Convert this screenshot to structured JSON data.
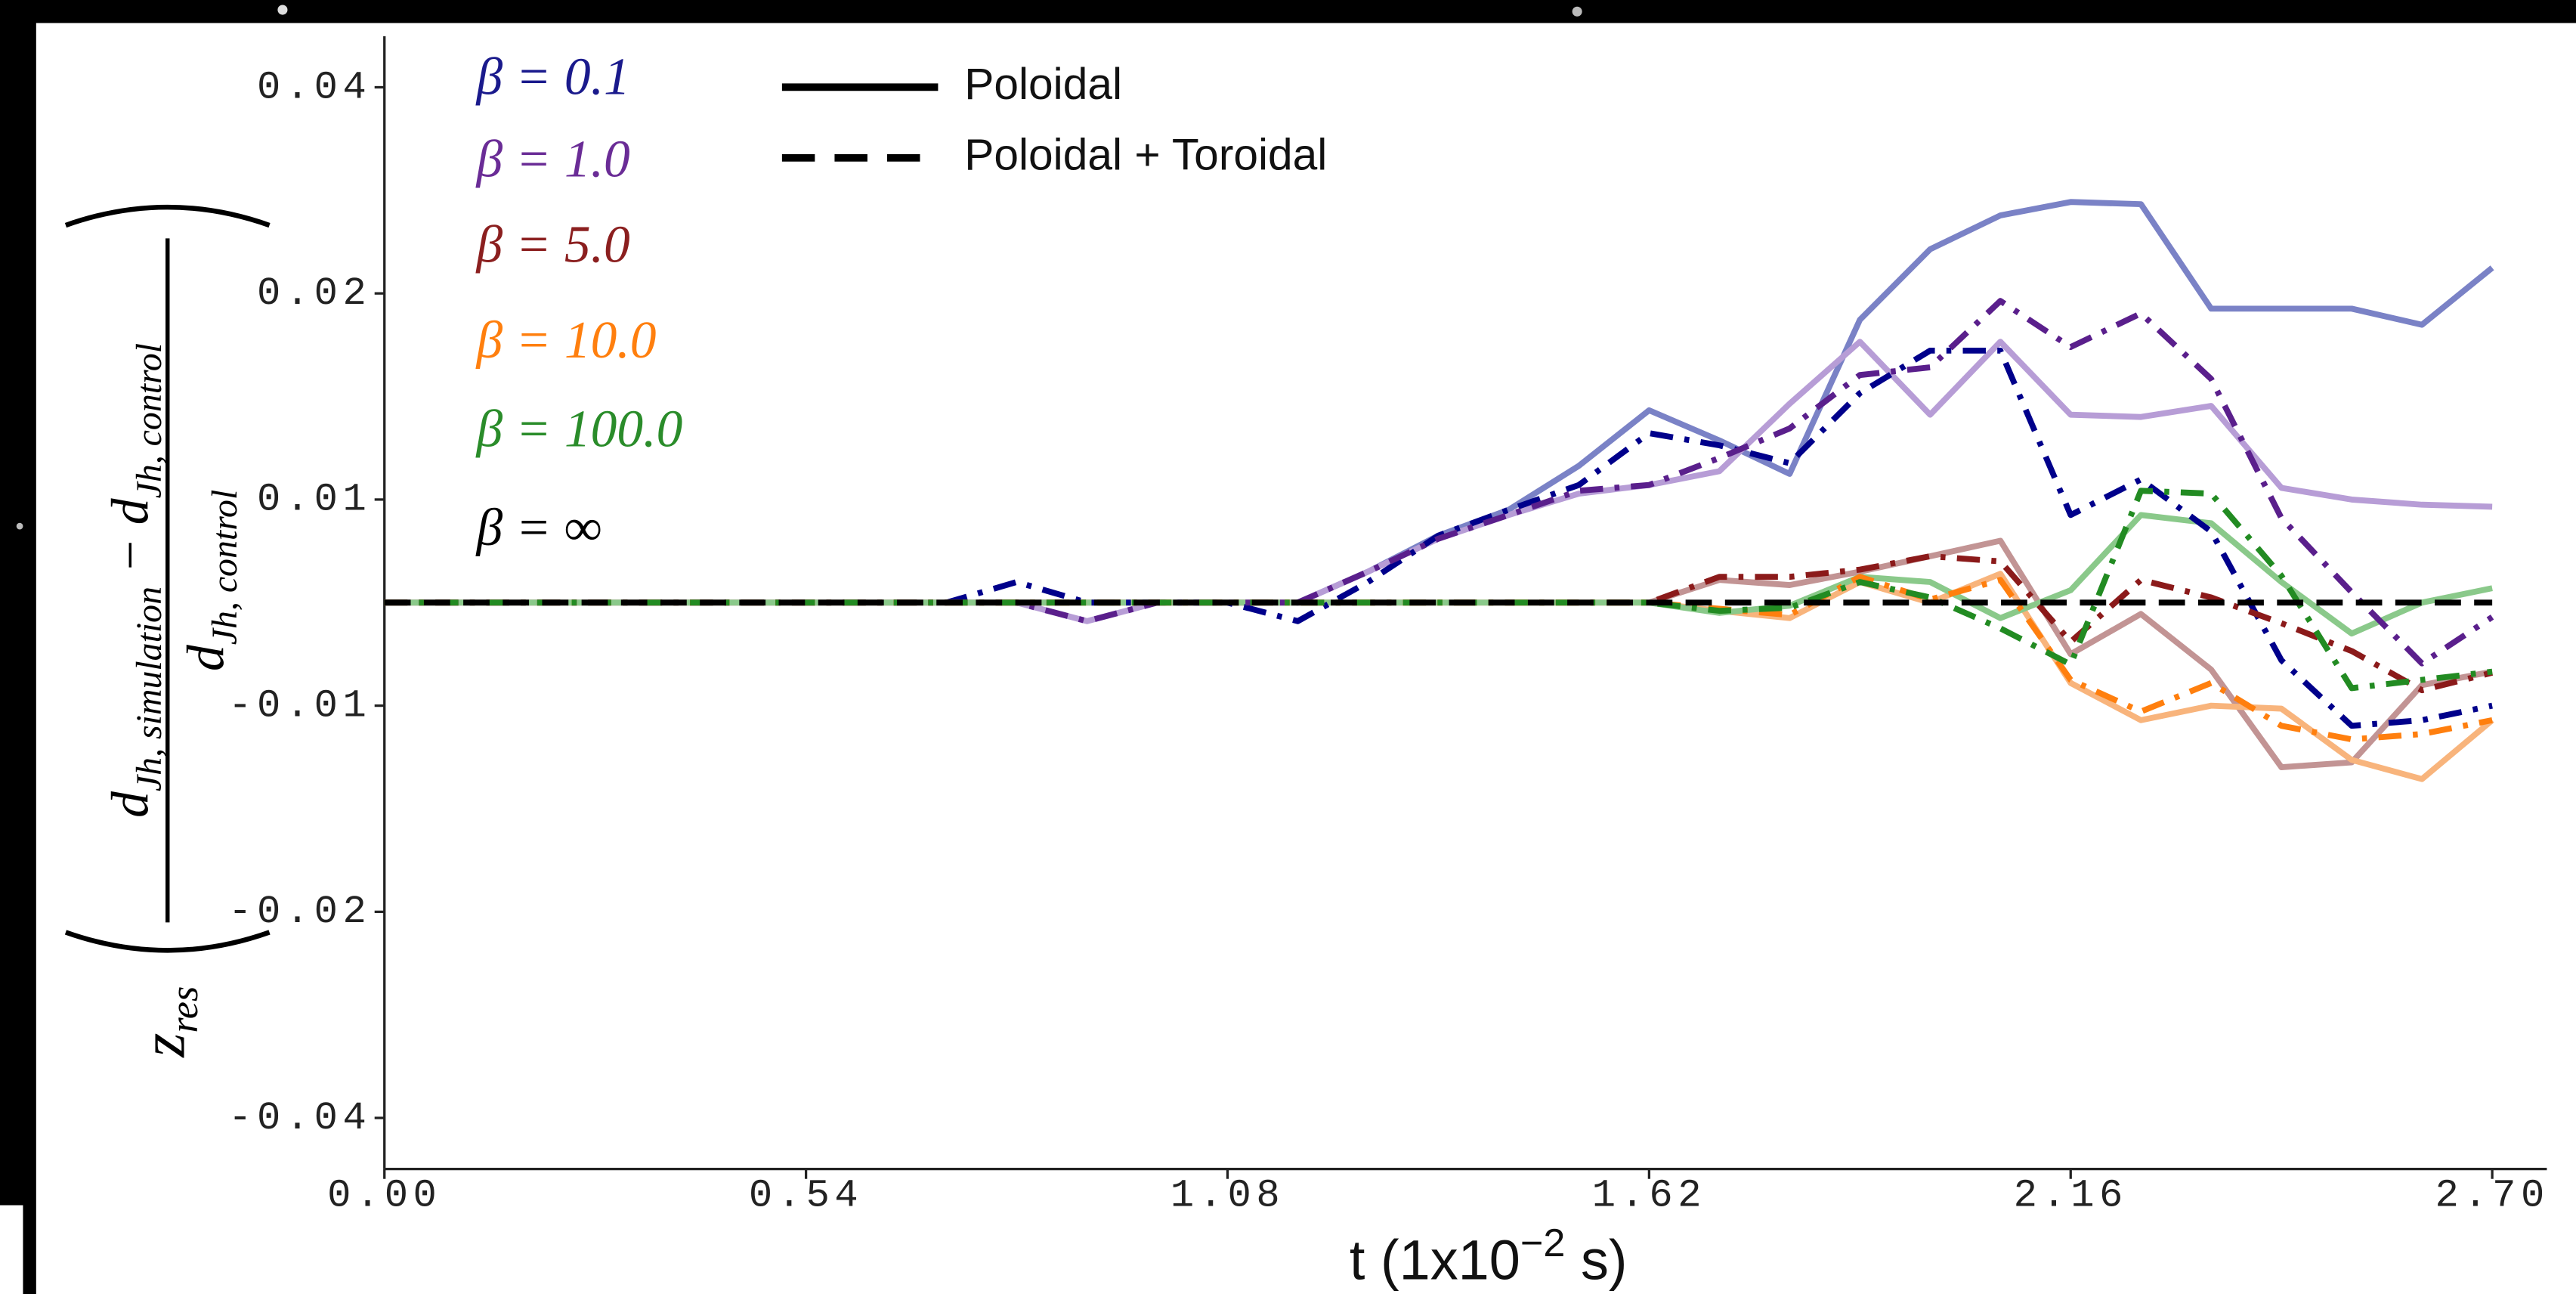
{
  "chart_data": {
    "type": "line",
    "yscale": "symlog",
    "linthresh": 0.01,
    "linscale": 0.5,
    "base": 2,
    "xlim": [
      0,
      2.77
    ],
    "ylim": [
      -0.0475,
      0.0475
    ],
    "xticks": [
      {
        "value": 0,
        "label": "0.00"
      },
      0.54,
      1.08,
      1.62,
      2.16,
      {
        "value": 2.7,
        "label": "2.70"
      }
    ],
    "yticks": [
      -0.04,
      -0.02,
      -0.01,
      0.01,
      0.02,
      0.04
    ],
    "xlabel": {
      "text": "t  (1x10",
      "sup": "−2",
      "unit": " s)"
    },
    "ylabel": {
      "z": "z",
      "z_sub": "res",
      "num_a": "d",
      "num_a_sub": "Jh, simulation",
      "minus": " − ",
      "num_b": "d",
      "num_b_sub": "Jh, control",
      "den": "d",
      "den_sub": "Jh, control"
    },
    "beta_legend": [
      {
        "label": "β = 0.1",
        "color": "#1a1a8c"
      },
      {
        "label": "β = 1.0",
        "color": "#6a2c96"
      },
      {
        "label": "β = 5.0",
        "color": "#8b1f1f"
      },
      {
        "label": "β = 10.0",
        "color": "#ff7f0e"
      },
      {
        "label": "β = 100.0",
        "color": "#2a8c2a"
      },
      {
        "label": "β = ∞",
        "color": "#000000"
      }
    ],
    "line_styles": [
      {
        "label": "Poloidal",
        "dash": "solid"
      },
      {
        "label": "Poloidal + Toroidal",
        "dash": "dashed"
      }
    ],
    "x": [
      0,
      0.09,
      0.18,
      0.27,
      0.36,
      0.45,
      0.54,
      0.63,
      0.72,
      0.81,
      0.9,
      0.99,
      1.08,
      1.17,
      1.26,
      1.35,
      1.44,
      1.53,
      1.62,
      1.71,
      1.8,
      1.89,
      1.98,
      2.07,
      2.16,
      2.25,
      2.34,
      2.43,
      2.52,
      2.61,
      2.7
    ],
    "series": [
      {
        "beta": 0,
        "style": 0,
        "color": "#7a82c6",
        "values": [
          0,
          0,
          0,
          0,
          0,
          0,
          0,
          0,
          0,
          0,
          0,
          0,
          0,
          0,
          0.003,
          0.0065,
          0.009,
          0.0112,
          0.0135,
          0.0122,
          0.0109,
          0.0183,
          0.0232,
          0.026,
          0.0272,
          0.027,
          0.019,
          0.019,
          0.019,
          0.018,
          0.0218
        ]
      },
      {
        "beta": 1,
        "style": 0,
        "color": "#b79dd6",
        "values": [
          0,
          0,
          0,
          0,
          0,
          0,
          0,
          0,
          0,
          0,
          -0.0018,
          0,
          0,
          0,
          0.003,
          0.0062,
          0.0085,
          0.0102,
          0.0105,
          0.011,
          0.0138,
          0.017,
          0.0133,
          0.017,
          0.0133,
          0.0132,
          0.0137,
          0.0104,
          0.01,
          0.0095,
          0.0093
        ]
      },
      {
        "beta": 2,
        "style": 0,
        "color": "#c29494",
        "values": [
          0,
          0,
          0,
          0,
          0,
          0,
          0,
          0,
          0,
          0,
          0,
          0,
          0,
          0,
          0,
          0,
          0,
          0,
          0,
          0.0022,
          0.0017,
          0.003,
          0.0045,
          0.006,
          -0.005,
          -0.0011,
          -0.0065,
          -0.0123,
          -0.0121,
          -0.008,
          -0.0067
        ]
      },
      {
        "beta": 3,
        "style": 0,
        "color": "#f8b47c",
        "values": [
          0,
          0,
          0,
          0,
          0,
          0,
          0,
          0,
          0,
          0,
          0,
          0,
          0,
          0,
          0,
          0,
          0,
          0,
          0,
          -0.0008,
          -0.0015,
          0.002,
          0,
          0.0028,
          -0.0078,
          -0.0105,
          -0.01,
          -0.0101,
          -0.012,
          -0.0128,
          -0.0105
        ]
      },
      {
        "beta": 4,
        "style": 0,
        "color": "#8ac98a",
        "values": [
          0,
          0,
          0,
          0,
          0,
          0,
          0,
          0,
          0,
          0,
          0,
          0,
          0,
          0,
          0,
          0,
          0,
          0,
          0,
          -0.001,
          -0.0003,
          0.0025,
          0.002,
          -0.0015,
          0.0012,
          0.0085,
          0.0077,
          0.002,
          -0.003,
          0,
          0.0014
        ]
      },
      {
        "beta": 0,
        "style": 1,
        "color": "#00008b",
        "values": [
          0,
          0,
          0,
          0,
          0,
          0,
          0,
          0,
          0,
          0.002,
          0,
          0,
          0,
          -0.0018,
          0.002,
          0.0065,
          0.009,
          0.0105,
          0.0125,
          0.012,
          0.0113,
          0.0143,
          0.0165,
          0.0165,
          0.0085,
          0.0107,
          0.0069,
          -0.0056,
          -0.0107,
          -0.0105,
          -0.01
        ]
      },
      {
        "beta": 1,
        "style": 1,
        "color": "#5a1f8c",
        "values": [
          0,
          0,
          0,
          0,
          0,
          0,
          0,
          0,
          0,
          0,
          -0.0018,
          0,
          0,
          0,
          0.003,
          0.0062,
          0.0085,
          0.0103,
          0.0105,
          0.0115,
          0.0127,
          0.0152,
          0.0156,
          0.0195,
          0.0167,
          0.0187,
          0.015,
          0.0082,
          0.001,
          -0.0059,
          -0.0014
        ]
      },
      {
        "beta": 2,
        "style": 1,
        "color": "#8b1a1a",
        "values": [
          0,
          0,
          0,
          0,
          0,
          0,
          0,
          0,
          0,
          0,
          0,
          0,
          0,
          0,
          0,
          0,
          0,
          0,
          0,
          0.0025,
          0.0025,
          0.0032,
          0.0045,
          0.004,
          -0.0038,
          0.0022,
          0.0005,
          -0.002,
          -0.0047,
          -0.0085,
          -0.0068
        ]
      },
      {
        "beta": 3,
        "style": 1,
        "color": "#ff7f0e",
        "values": [
          0,
          0,
          0,
          0,
          0,
          0,
          0,
          0,
          0,
          0,
          0,
          0,
          0,
          0,
          0,
          0,
          0,
          0,
          0,
          -0.0006,
          -0.0012,
          0.0025,
          0.0003,
          0.0022,
          -0.0075,
          -0.0102,
          -0.0078,
          -0.0107,
          -0.0112,
          -0.011,
          -0.0105
        ]
      },
      {
        "beta": 4,
        "style": 1,
        "color": "#228b22",
        "values": [
          0,
          0,
          0,
          0,
          0,
          0,
          0,
          0,
          0,
          0,
          0,
          0,
          0,
          0,
          0,
          0,
          0,
          0,
          0,
          -0.0008,
          -0.0005,
          0.002,
          0.0005,
          -0.0025,
          -0.006,
          0.0103,
          0.0102,
          0.0026,
          -0.0083,
          -0.0075,
          -0.0067
        ]
      },
      {
        "beta": 5,
        "style": 1,
        "color": "#000000",
        "values": [
          0,
          0,
          0,
          0,
          0,
          0,
          0,
          0,
          0,
          0,
          0,
          0,
          0,
          0,
          0,
          0,
          0,
          0,
          0,
          0,
          0,
          0,
          0,
          0,
          0,
          0,
          0,
          0,
          0,
          0,
          0
        ]
      }
    ]
  }
}
